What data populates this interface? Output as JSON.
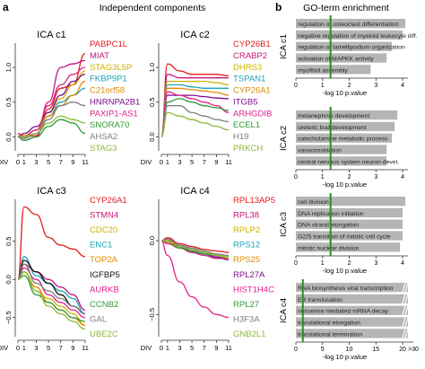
{
  "panel_a": {
    "letter": "a",
    "title": "Independent components",
    "div_label": "DIV",
    "x_ticks": [
      "0",
      "1",
      "3",
      "5",
      "7",
      "9",
      "11"
    ],
    "charts": [
      {
        "title": "ICA c1",
        "y_ticks": [
          "0.0",
          "0.5",
          "1.0"
        ],
        "ylim": [
          -0.2,
          1.35
        ],
        "genes": [
          {
            "name": "PABPC1L",
            "color": "#e41a1c"
          },
          {
            "name": "MIAT",
            "color": "#c2177a"
          },
          {
            "name": "STAG3L5P",
            "color": "#d0b000"
          },
          {
            "name": "FKBP9P1",
            "color": "#1aa6b7"
          },
          {
            "name": "C21orf58",
            "color": "#e08a00"
          },
          {
            "name": "HNRNPA2B1",
            "color": "#7b0f8a"
          },
          {
            "name": "PAXIP1-AS1",
            "color": "#e0218a"
          },
          {
            "name": "SNORA70",
            "color": "#2e9a35"
          },
          {
            "name": "AHSA2",
            "color": "#7f7f7f"
          },
          {
            "name": "STAG3",
            "color": "#8fb83a"
          }
        ]
      },
      {
        "title": "ICA c2",
        "y_ticks": [
          "0.0",
          "0.5",
          "1.0"
        ],
        "ylim": [
          -0.2,
          1.35
        ],
        "genes": [
          {
            "name": "CYP26B1",
            "color": "#e41a1c"
          },
          {
            "name": "CRABP2",
            "color": "#c2177a"
          },
          {
            "name": "DHRS3",
            "color": "#d0b000"
          },
          {
            "name": "TSPAN1",
            "color": "#1aa6b7"
          },
          {
            "name": "CYP26A1",
            "color": "#e08a00"
          },
          {
            "name": "ITGB5",
            "color": "#7b0f8a"
          },
          {
            "name": "ARHGDIB",
            "color": "#e0218a"
          },
          {
            "name": "ECEL1",
            "color": "#2e9a35"
          },
          {
            "name": "H19",
            "color": "#7f7f7f"
          },
          {
            "name": "PRKCH",
            "color": "#8fb83a"
          }
        ]
      },
      {
        "title": "ICA c3",
        "y_ticks": [
          "−0.5",
          "0.0",
          "0.5"
        ],
        "ylim": [
          -0.75,
          1.05
        ],
        "genes": [
          {
            "name": "CYP26A1",
            "color": "#e41a1c"
          },
          {
            "name": "STMN4",
            "color": "#c2177a"
          },
          {
            "name": "CDC20",
            "color": "#d0b000"
          },
          {
            "name": "ENC1",
            "color": "#1aa6b7"
          },
          {
            "name": "TOP2A",
            "color": "#e08a00"
          },
          {
            "name": "IGFBP5",
            "color": "#111111"
          },
          {
            "name": "AURKB",
            "color": "#e0218a"
          },
          {
            "name": "CCNB2",
            "color": "#2e9a35"
          },
          {
            "name": "GAL",
            "color": "#7f7f7f"
          },
          {
            "name": "UBE2C",
            "color": "#8fb83a"
          }
        ]
      },
      {
        "title": "ICA c4",
        "y_ticks": [
          "−0.5",
          "0.0"
        ],
        "ylim": [
          -0.65,
          0.28
        ],
        "genes": [
          {
            "name": "RPL13AP5",
            "color": "#e41a1c"
          },
          {
            "name": "RPL38",
            "color": "#c2177a"
          },
          {
            "name": "RPLP2",
            "color": "#d0b000"
          },
          {
            "name": "RPS12",
            "color": "#1aa6b7"
          },
          {
            "name": "RPS25",
            "color": "#e08a00"
          },
          {
            "name": "RPL27A",
            "color": "#7b0f8a"
          },
          {
            "name": "HIST1H4C",
            "color": "#e0218a"
          },
          {
            "name": "RPL27",
            "color": "#2e9a35"
          },
          {
            "name": "H3F3A",
            "color": "#7f7f7f"
          },
          {
            "name": "GNB2L1",
            "color": "#8fb83a"
          }
        ]
      }
    ]
  },
  "panel_b": {
    "letter": "b",
    "title": "GO-term enrichment",
    "xlabel": "-log 10 p.value",
    "bar_color": "#b5b5b5",
    "line_color": "#2e8b22",
    "threshold": 1.3,
    "charts": [
      {
        "ylabel": "ICA c1",
        "xlim": [
          0,
          4.2
        ],
        "x_ticks": [
          0,
          1,
          2,
          3,
          4
        ],
        "terms": [
          {
            "label": "regulation of osteoclast differentiation",
            "value": 4.1
          },
          {
            "label": "negative regulation of myeloid leukocyte diff.",
            "value": 4.0
          },
          {
            "label": "regulation of lamellipodium organization",
            "value": 3.6
          },
          {
            "label": "activation of MAPKK activity",
            "value": 3.4
          },
          {
            "label": "myofibril assembly",
            "value": 2.8
          }
        ]
      },
      {
        "ylabel": "ICA c2",
        "xlim": [
          0,
          4.2
        ],
        "x_ticks": [
          0,
          1,
          2,
          3,
          4
        ],
        "terms": [
          {
            "label": "metanephros development",
            "value": 3.8
          },
          {
            "label": "ureteric bud development",
            "value": 3.7
          },
          {
            "label": "catecholamine metabolic process",
            "value": 3.6
          },
          {
            "label": "vasoconstriction",
            "value": 3.4
          },
          {
            "label": "central nervous system neuron devel.",
            "value": 3.4
          }
        ]
      },
      {
        "ylabel": "ICA c3",
        "xlim": [
          0,
          4.2
        ],
        "x_ticks": [
          0,
          1,
          2,
          3,
          4
        ],
        "terms": [
          {
            "label": "cell division",
            "value": 4.1
          },
          {
            "label": "DNA replication initiation",
            "value": 4.0
          },
          {
            "label": "DNA strand elongation",
            "value": 4.0
          },
          {
            "label": "G2/S transition of mitotic cell cycle",
            "value": 4.0
          },
          {
            "label": "mitotic nuclear division",
            "value": 3.9
          }
        ]
      },
      {
        "ylabel": "ICA c4",
        "xlim": [
          0,
          21
        ],
        "x_ticks": [
          0,
          5,
          10,
          15,
          20
        ],
        "x_tick_last": ">30",
        "terms": [
          {
            "label": "RNA biosynthesis viral transcription",
            "value": 30
          },
          {
            "label": "ER translocation",
            "value": 30
          },
          {
            "label": "nonsense mediated mRNA decay",
            "value": 30
          },
          {
            "label": "translational elongation",
            "value": 30
          },
          {
            "label": "translational termination",
            "value": 30
          }
        ]
      }
    ]
  },
  "chart_data": [
    {
      "type": "line",
      "title": "ICA c1",
      "xlabel": "DIV",
      "x": [
        0,
        1,
        3,
        5,
        7,
        9,
        11
      ],
      "ylim": [
        -0.2,
        1.35
      ],
      "series": [
        {
          "name": "PABPC1L",
          "values": [
            0.05,
            0.0,
            0.02,
            0.4,
            0.7,
            0.75,
            1.2
          ]
        },
        {
          "name": "MIAT",
          "values": [
            0.0,
            -0.05,
            0.0,
            0.5,
            1.0,
            1.05,
            1.1
          ]
        },
        {
          "name": "STAG3L5P",
          "values": [
            0.02,
            0.0,
            0.05,
            0.35,
            0.55,
            0.75,
            0.95
          ]
        },
        {
          "name": "FKBP9P1",
          "values": [
            0.0,
            -0.02,
            0.05,
            0.3,
            0.5,
            0.6,
            0.7
          ]
        },
        {
          "name": "C21orf58",
          "values": [
            0.05,
            0.02,
            0.1,
            0.3,
            0.45,
            0.6,
            0.8
          ]
        },
        {
          "name": "HNRNPA2B1",
          "values": [
            0.0,
            0.05,
            0.15,
            0.35,
            0.6,
            0.8,
            0.9
          ]
        },
        {
          "name": "PAXIP1-AS1",
          "values": [
            0.05,
            0.0,
            0.1,
            0.45,
            0.75,
            0.9,
            1.0
          ]
        },
        {
          "name": "SNORA70",
          "values": [
            0.0,
            -0.05,
            0.0,
            0.15,
            0.25,
            0.2,
            0.05
          ]
        },
        {
          "name": "AHSA2",
          "values": [
            0.0,
            -0.02,
            0.05,
            0.25,
            0.45,
            0.5,
            0.45
          ]
        },
        {
          "name": "STAG3",
          "values": [
            0.02,
            0.0,
            0.05,
            0.2,
            0.3,
            0.25,
            0.2
          ]
        }
      ]
    },
    {
      "type": "line",
      "title": "ICA c2",
      "xlabel": "DIV",
      "x": [
        0,
        1,
        3,
        5,
        7,
        9,
        11
      ],
      "ylim": [
        -0.2,
        1.35
      ],
      "series": [
        {
          "name": "CYP26B1",
          "values": [
            0.0,
            1.05,
            0.95,
            0.9,
            0.9,
            0.9,
            0.88
          ]
        },
        {
          "name": "CRABP2",
          "values": [
            0.0,
            0.9,
            0.85,
            0.85,
            0.85,
            0.85,
            0.85
          ]
        },
        {
          "name": "DHRS3",
          "values": [
            0.0,
            0.8,
            0.8,
            0.8,
            0.8,
            0.78,
            0.75
          ]
        },
        {
          "name": "TSPAN1",
          "values": [
            0.0,
            0.75,
            0.75,
            0.72,
            0.7,
            0.7,
            0.7
          ]
        },
        {
          "name": "CYP26A1",
          "values": [
            0.0,
            0.7,
            0.7,
            0.68,
            0.66,
            0.64,
            0.6
          ]
        },
        {
          "name": "ITGB5",
          "values": [
            0.0,
            0.6,
            0.6,
            0.6,
            0.58,
            0.56,
            0.55
          ]
        },
        {
          "name": "ARHGDIB",
          "values": [
            0.0,
            0.65,
            0.6,
            0.55,
            0.5,
            0.45,
            0.35
          ]
        },
        {
          "name": "ECEL1",
          "values": [
            0.0,
            0.5,
            0.55,
            0.5,
            0.45,
            0.42,
            0.38
          ]
        },
        {
          "name": "H19",
          "values": [
            0.0,
            0.45,
            0.45,
            0.35,
            0.3,
            0.25,
            0.22
          ]
        },
        {
          "name": "PRKCH",
          "values": [
            0.0,
            0.35,
            0.3,
            0.25,
            0.2,
            0.15,
            0.1
          ]
        }
      ]
    },
    {
      "type": "line",
      "title": "ICA c3",
      "xlabel": "DIV",
      "x": [
        0,
        1,
        3,
        5,
        7,
        9,
        11
      ],
      "ylim": [
        -0.75,
        1.05
      ],
      "series": [
        {
          "name": "CYP26A1",
          "values": [
            0.0,
            0.95,
            0.85,
            0.55,
            0.45,
            0.4,
            0.3
          ]
        },
        {
          "name": "STMN4",
          "values": [
            0.0,
            0.2,
            0.1,
            0.0,
            -0.1,
            -0.2,
            -0.4
          ]
        },
        {
          "name": "CDC20",
          "values": [
            0.0,
            0.1,
            -0.15,
            -0.25,
            -0.35,
            -0.45,
            -0.6
          ]
        },
        {
          "name": "ENC1",
          "values": [
            0.0,
            0.3,
            0.05,
            -0.05,
            -0.15,
            -0.25,
            -0.45
          ]
        },
        {
          "name": "TOP2A",
          "values": [
            0.0,
            0.1,
            -0.1,
            -0.3,
            -0.4,
            -0.5,
            -0.6
          ]
        },
        {
          "name": "IGFBP5",
          "values": [
            0.0,
            0.25,
            0.1,
            -0.05,
            -0.2,
            -0.35,
            -0.45
          ]
        },
        {
          "name": "AURKB",
          "values": [
            0.0,
            0.15,
            0.0,
            -0.2,
            -0.3,
            -0.4,
            -0.5
          ]
        },
        {
          "name": "CCNB2",
          "values": [
            0.0,
            0.05,
            -0.2,
            -0.3,
            -0.4,
            -0.5,
            -0.55
          ]
        },
        {
          "name": "GAL",
          "values": [
            0.0,
            0.2,
            -0.05,
            -0.15,
            -0.25,
            -0.35,
            -0.45
          ]
        },
        {
          "name": "UBE2C",
          "values": [
            0.0,
            0.1,
            -0.15,
            -0.35,
            -0.45,
            -0.55,
            -0.65
          ]
        }
      ]
    },
    {
      "type": "line",
      "title": "ICA c4",
      "xlabel": "DIV",
      "x": [
        0,
        1,
        3,
        5,
        7,
        9,
        11
      ],
      "ylim": [
        -0.65,
        0.28
      ],
      "series": [
        {
          "name": "RPL13AP5",
          "values": [
            0.0,
            0.02,
            -0.02,
            -0.04,
            -0.06,
            -0.07,
            -0.08
          ]
        },
        {
          "name": "RPL38",
          "values": [
            0.0,
            -0.02,
            -0.05,
            -0.08,
            -0.1,
            -0.12,
            -0.12
          ]
        },
        {
          "name": "RPLP2",
          "values": [
            0.0,
            0.0,
            -0.04,
            -0.06,
            -0.08,
            -0.09,
            -0.1
          ]
        },
        {
          "name": "RPS12",
          "values": [
            0.0,
            0.0,
            -0.03,
            -0.06,
            -0.08,
            -0.1,
            -0.11
          ]
        },
        {
          "name": "RPS25",
          "values": [
            0.0,
            -0.01,
            -0.05,
            -0.07,
            -0.09,
            -0.1,
            -0.12
          ]
        },
        {
          "name": "RPL27A",
          "values": [
            0.0,
            0.01,
            -0.04,
            -0.07,
            -0.09,
            -0.11,
            -0.13
          ]
        },
        {
          "name": "HIST1H4C",
          "values": [
            0.0,
            -0.1,
            -0.28,
            -0.38,
            -0.45,
            -0.5,
            -0.52
          ]
        },
        {
          "name": "RPL27",
          "values": [
            0.0,
            0.0,
            -0.05,
            -0.07,
            -0.09,
            -0.1,
            -0.11
          ]
        },
        {
          "name": "H3F3A",
          "values": [
            0.0,
            0.01,
            -0.03,
            -0.05,
            -0.07,
            -0.09,
            -0.1
          ]
        },
        {
          "name": "GNB2L1",
          "values": [
            0.0,
            0.0,
            -0.04,
            -0.06,
            -0.08,
            -0.1,
            -0.11
          ]
        }
      ]
    },
    {
      "type": "bar",
      "title": "ICA c1",
      "xlabel": "-log 10 p.value",
      "categories": [
        "regulation of osteoclast differentiation",
        "negative regulation of myeloid leukocyte diff.",
        "regulation of lamellipodium organization",
        "activation of MAPKK activity",
        "myofibril assembly"
      ],
      "values": [
        4.1,
        4.0,
        3.6,
        3.4,
        2.8
      ]
    },
    {
      "type": "bar",
      "title": "ICA c2",
      "xlabel": "-log 10 p.value",
      "categories": [
        "metanephros development",
        "ureteric bud development",
        "catecholamine metabolic process",
        "vasoconstriction",
        "central nervous system neuron devel."
      ],
      "values": [
        3.8,
        3.7,
        3.6,
        3.4,
        3.4
      ]
    },
    {
      "type": "bar",
      "title": "ICA c3",
      "xlabel": "-log 10 p.value",
      "categories": [
        "cell division",
        "DNA replication initiation",
        "DNA strand elongation",
        "G2/S transition of mitotic cell cycle",
        "mitotic nuclear division"
      ],
      "values": [
        4.1,
        4.0,
        4.0,
        4.0,
        3.9
      ]
    },
    {
      "type": "bar",
      "title": "ICA c4",
      "xlabel": "-log 10 p.value",
      "categories": [
        "RNA biosynthesis viral transcription",
        "ER translocation",
        "nonsense mediated mRNA decay",
        "translational elongation",
        "translational termination"
      ],
      "values": [
        30,
        30,
        30,
        30,
        30
      ]
    }
  ]
}
